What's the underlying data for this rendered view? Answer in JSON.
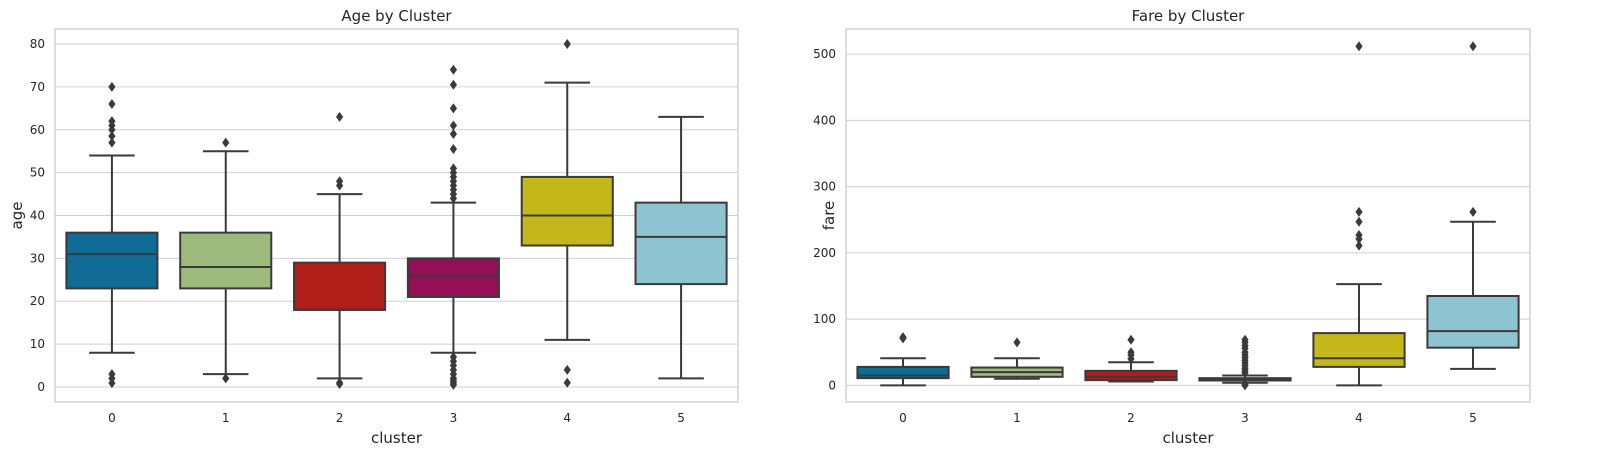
{
  "chart_data": [
    {
      "type": "box",
      "title": "Age by Cluster",
      "xlabel": "cluster",
      "ylabel": "age",
      "ylim": [
        -3.5,
        83.5
      ],
      "yticks": [
        0,
        10,
        20,
        30,
        40,
        50,
        60,
        70,
        80
      ],
      "categories": [
        "0",
        "1",
        "2",
        "3",
        "4",
        "5"
      ],
      "grid": "y",
      "boxes": [
        {
          "category": "0",
          "whislo": 8,
          "q1": 23,
          "median": 31,
          "q3": 36,
          "whishi": 54,
          "fliers": [
            0.9,
            2,
            3,
            57,
            58.5,
            60,
            61,
            62,
            66,
            70
          ]
        },
        {
          "category": "1",
          "whislo": 3,
          "q1": 23,
          "median": 28,
          "q3": 36,
          "whishi": 55,
          "fliers": [
            2,
            57
          ]
        },
        {
          "category": "2",
          "whislo": 2,
          "q1": 18,
          "median": 18,
          "q3": 29,
          "whishi": 45,
          "fliers": [
            0.7,
            1,
            47,
            48,
            63
          ]
        },
        {
          "category": "3",
          "whislo": 8,
          "q1": 21,
          "median": 26,
          "q3": 30,
          "whishi": 43,
          "fliers": [
            0.5,
            1,
            1.5,
            2,
            3,
            4,
            5,
            6,
            7,
            44,
            45,
            46,
            47,
            48,
            49,
            50,
            51,
            55.5,
            59,
            61,
            65,
            70.5,
            74
          ]
        },
        {
          "category": "4",
          "whislo": 11,
          "q1": 33,
          "median": 40,
          "q3": 49,
          "whishi": 71,
          "fliers": [
            1,
            4,
            80
          ]
        },
        {
          "category": "5",
          "whislo": 2,
          "q1": 24,
          "median": 35,
          "q3": 43,
          "whishi": 63,
          "fliers": []
        }
      ]
    },
    {
      "type": "box",
      "title": "Fare by Cluster",
      "xlabel": "cluster",
      "ylabel": "fare",
      "ylim": [
        -25,
        538
      ],
      "yticks": [
        0,
        100,
        200,
        300,
        400,
        500
      ],
      "categories": [
        "0",
        "1",
        "2",
        "3",
        "4",
        "5"
      ],
      "grid": "y",
      "boxes": [
        {
          "category": "0",
          "whislo": 0,
          "q1": 11,
          "median": 15,
          "q3": 28,
          "whishi": 41,
          "fliers": [
            71,
            73
          ]
        },
        {
          "category": "1",
          "whislo": 10,
          "q1": 13,
          "median": 20,
          "q3": 27,
          "whishi": 41,
          "fliers": [
            65
          ]
        },
        {
          "category": "2",
          "whislo": 6,
          "q1": 8,
          "median": 13,
          "q3": 22,
          "whishi": 35,
          "fliers": [
            40,
            46,
            50,
            69
          ]
        },
        {
          "category": "3",
          "whislo": 4,
          "q1": 7.5,
          "median": 8,
          "q3": 11,
          "whishi": 15,
          "fliers": [
            0,
            2,
            19,
            22,
            26,
            30,
            34,
            38,
            42,
            46,
            50,
            56,
            60,
            65,
            69
          ]
        },
        {
          "category": "4",
          "whislo": 0,
          "q1": 28,
          "median": 41,
          "q3": 79,
          "whishi": 153,
          "fliers": [
            211,
            221,
            227,
            247,
            262,
            512
          ]
        },
        {
          "category": "5",
          "whislo": 25,
          "q1": 57,
          "median": 82,
          "q3": 135,
          "whishi": 247,
          "fliers": [
            262,
            512
          ]
        }
      ]
    }
  ],
  "colors": {
    "boxes": [
      "#106C94",
      "#9DBB7C",
      "#B01E1A",
      "#960F57",
      "#C4B71A",
      "#8EC4D1"
    ],
    "edge": "#3a3a3a",
    "grid": "#d0d0d0",
    "spine": "#c8c8c8"
  }
}
